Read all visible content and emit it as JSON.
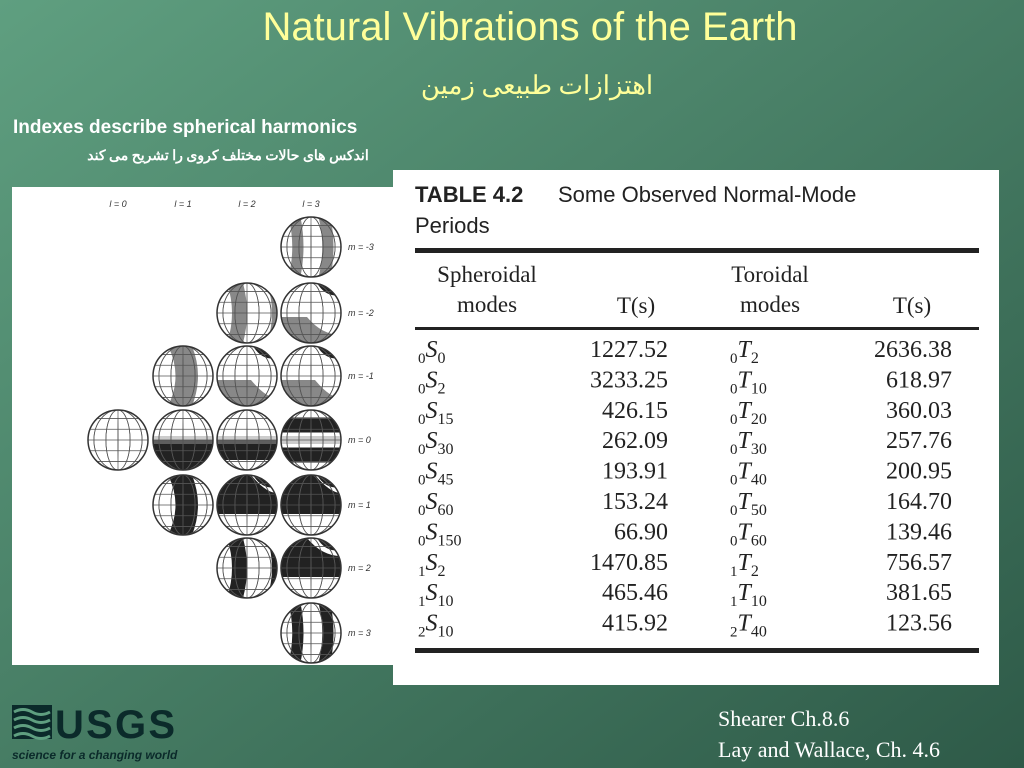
{
  "title": "Natural Vibrations of the Earth",
  "subtitle": "اهتزازات طبیعی زمین",
  "heading": "Indexes describe spherical harmonics",
  "heading_translation": "اندکس های حالات مختلف کروی را تشریح می کند",
  "figure": {
    "l_labels": [
      "l = 0",
      "l = 1",
      "l = 2",
      "l = 3"
    ],
    "m_labels": [
      "m = -3",
      "m = -2",
      "m = -1",
      "m = 0",
      "m = 1",
      "m = 2",
      "m = 3"
    ]
  },
  "table": {
    "label": "TABLE 4.2",
    "caption": [
      "Some Observed Normal-Mode",
      "Periods"
    ],
    "headers": [
      [
        "Spheroidal",
        "modes"
      ],
      [
        "T(s)"
      ],
      [
        "Toroidal",
        "modes"
      ],
      [
        "T(s)"
      ]
    ],
    "rows": [
      [
        {
          "n": "0",
          "letter": "S",
          "l": "0"
        },
        "1227.52",
        {
          "n": "0",
          "letter": "T",
          "l": "2"
        },
        "2636.38"
      ],
      [
        {
          "n": "0",
          "letter": "S",
          "l": "2"
        },
        "3233.25",
        {
          "n": "0",
          "letter": "T",
          "l": "10"
        },
        "618.97"
      ],
      [
        {
          "n": "0",
          "letter": "S",
          "l": "15"
        },
        "426.15",
        {
          "n": "0",
          "letter": "T",
          "l": "20"
        },
        "360.03"
      ],
      [
        {
          "n": "0",
          "letter": "S",
          "l": "30"
        },
        "262.09",
        {
          "n": "0",
          "letter": "T",
          "l": "30"
        },
        "257.76"
      ],
      [
        {
          "n": "0",
          "letter": "S",
          "l": "45"
        },
        "193.91",
        {
          "n": "0",
          "letter": "T",
          "l": "40"
        },
        "200.95"
      ],
      [
        {
          "n": "0",
          "letter": "S",
          "l": "60"
        },
        "153.24",
        {
          "n": "0",
          "letter": "T",
          "l": "50"
        },
        "164.70"
      ],
      [
        {
          "n": "0",
          "letter": "S",
          "l": "150"
        },
        "66.90",
        {
          "n": "0",
          "letter": "T",
          "l": "60"
        },
        "139.46"
      ],
      [
        {
          "n": "1",
          "letter": "S",
          "l": "2"
        },
        "1470.85",
        {
          "n": "1",
          "letter": "T",
          "l": "2"
        },
        "756.57"
      ],
      [
        {
          "n": "1",
          "letter": "S",
          "l": "10"
        },
        "465.46",
        {
          "n": "1",
          "letter": "T",
          "l": "10"
        },
        "381.65"
      ],
      [
        {
          "n": "2",
          "letter": "S",
          "l": "10"
        },
        "415.92",
        {
          "n": "2",
          "letter": "T",
          "l": "40"
        },
        "123.56"
      ]
    ]
  },
  "logo": {
    "name": "USGS",
    "tagline": "science for a changing world"
  },
  "references": [
    "Shearer Ch.8.6",
    "Lay and Wallace, Ch. 4.6"
  ]
}
